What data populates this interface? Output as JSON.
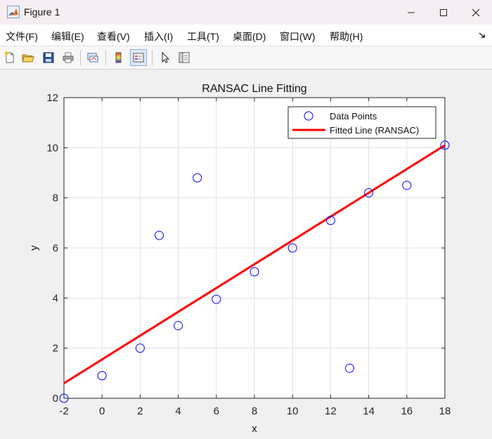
{
  "window": {
    "title": "Figure 1"
  },
  "menu": [
    "文件(F)",
    "编辑(E)",
    "查看(V)",
    "插入(I)",
    "工具(T)",
    "桌面(D)",
    "窗口(W)",
    "帮助(H)"
  ],
  "toolbar": {
    "icons": [
      "new-file-icon",
      "open-folder-icon",
      "save-icon",
      "print-icon",
      "link-plot-icon",
      "colorbar-icon",
      "legend-icon",
      "pointer-icon",
      "property-editor-icon"
    ]
  },
  "colors": {
    "points": "#0000ff",
    "line": "#ff0000",
    "axes_bg": "#ffffff",
    "figure_bg": "#f0f0f0"
  },
  "chart_data": {
    "type": "scatter",
    "title": "RANSAC Line Fitting",
    "xlabel": "x",
    "ylabel": "y",
    "xlim": [
      -2,
      18
    ],
    "ylim": [
      0,
      12
    ],
    "xticks": [
      -2,
      0,
      2,
      4,
      6,
      8,
      10,
      12,
      14,
      16,
      18
    ],
    "yticks": [
      0,
      2,
      4,
      6,
      8,
      10,
      12
    ],
    "grid": true,
    "legend_position": "top-right",
    "series": [
      {
        "name": "Data Points",
        "kind": "scatter",
        "marker": "circle",
        "x": [
          -2,
          0,
          2,
          3,
          4,
          5,
          6,
          8,
          10,
          12,
          13,
          14,
          16,
          18
        ],
        "y": [
          0,
          0.9,
          2.0,
          6.5,
          2.9,
          8.8,
          3.95,
          5.05,
          6.0,
          7.1,
          1.2,
          8.2,
          8.5,
          10.1
        ]
      },
      {
        "name": "Fitted Line (RANSAC)",
        "kind": "line",
        "x": [
          -2,
          18
        ],
        "y": [
          0.6,
          10.1
        ]
      }
    ]
  }
}
